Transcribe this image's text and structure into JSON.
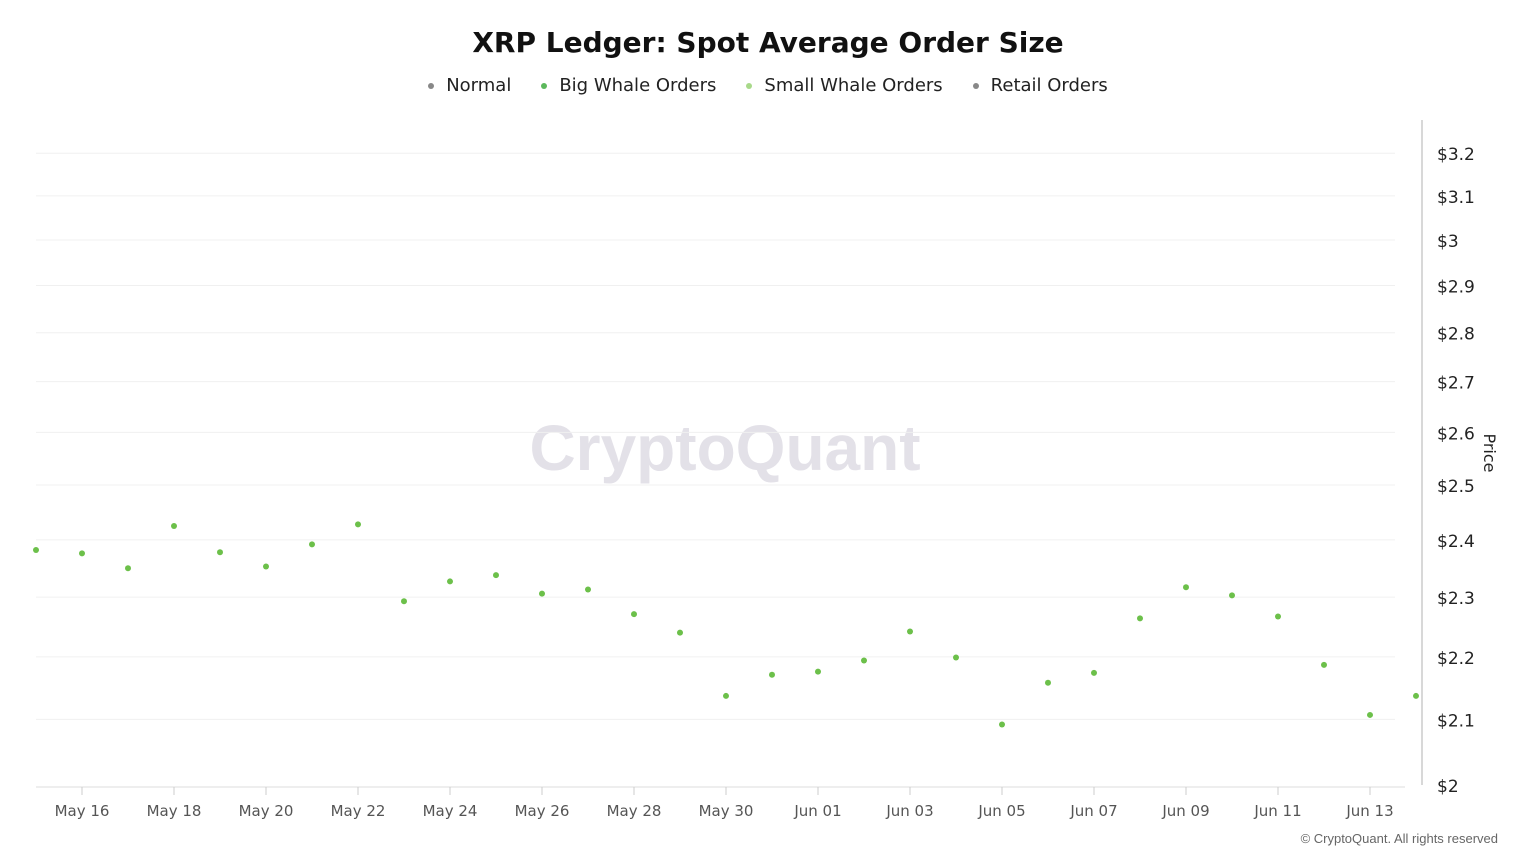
{
  "chart_data": {
    "type": "scatter",
    "title": "XRP Ledger: Spot Average Order Size",
    "legend": [
      {
        "name": "Normal",
        "color": "#888888"
      },
      {
        "name": "Big Whale Orders",
        "color": "#5cb85c"
      },
      {
        "name": "Small Whale Orders",
        "color": "#a8d98a"
      },
      {
        "name": "Retail Orders",
        "color": "#888888"
      }
    ],
    "legend_placement": "top-center",
    "ylabel": "Price",
    "yscale": "log",
    "ylim": [
      2,
      3.28
    ],
    "yticks": [
      2,
      2.1,
      2.2,
      2.3,
      2.4,
      2.5,
      2.6,
      2.7,
      2.8,
      2.9,
      3,
      3.1,
      3.2
    ],
    "ytick_labels": [
      "$2",
      "$2.1",
      "$2.2",
      "$2.3",
      "$2.4",
      "$2.5",
      "$2.6",
      "$2.7",
      "$2.8",
      "$2.9",
      "$3",
      "$3.1",
      "$3.2"
    ],
    "xtick_labels": [
      "May 16",
      "May 18",
      "May 20",
      "May 22",
      "May 24",
      "May 26",
      "May 28",
      "May 30",
      "Jun 01",
      "Jun 03",
      "Jun 05",
      "Jun 07",
      "Jun 09",
      "Jun 11",
      "Jun 13"
    ],
    "grid": true,
    "point_color": "#6cc04a",
    "x": [
      "May 15",
      "May 16",
      "May 17",
      "May 18",
      "May 19",
      "May 20",
      "May 21",
      "May 22",
      "May 23",
      "May 24",
      "May 25",
      "May 26",
      "May 27",
      "May 28",
      "May 29",
      "May 30",
      "May 31",
      "Jun 01",
      "Jun 02",
      "Jun 03",
      "Jun 04",
      "Jun 05",
      "Jun 06",
      "Jun 07",
      "Jun 08",
      "Jun 09",
      "Jun 10",
      "Jun 11",
      "Jun 12",
      "Jun 13",
      "Jun 14"
    ],
    "values": [
      2.382,
      2.376,
      2.35,
      2.425,
      2.378,
      2.353,
      2.392,
      2.428,
      2.293,
      2.327,
      2.338,
      2.306,
      2.313,
      2.271,
      2.24,
      2.137,
      2.171,
      2.176,
      2.194,
      2.242,
      2.199,
      2.092,
      2.158,
      2.174,
      2.264,
      2.317,
      2.303,
      2.267,
      2.187,
      2.107,
      2.137
    ]
  },
  "watermark": "CryptoQuant",
  "footer": "© CryptoQuant. All rights reserved"
}
